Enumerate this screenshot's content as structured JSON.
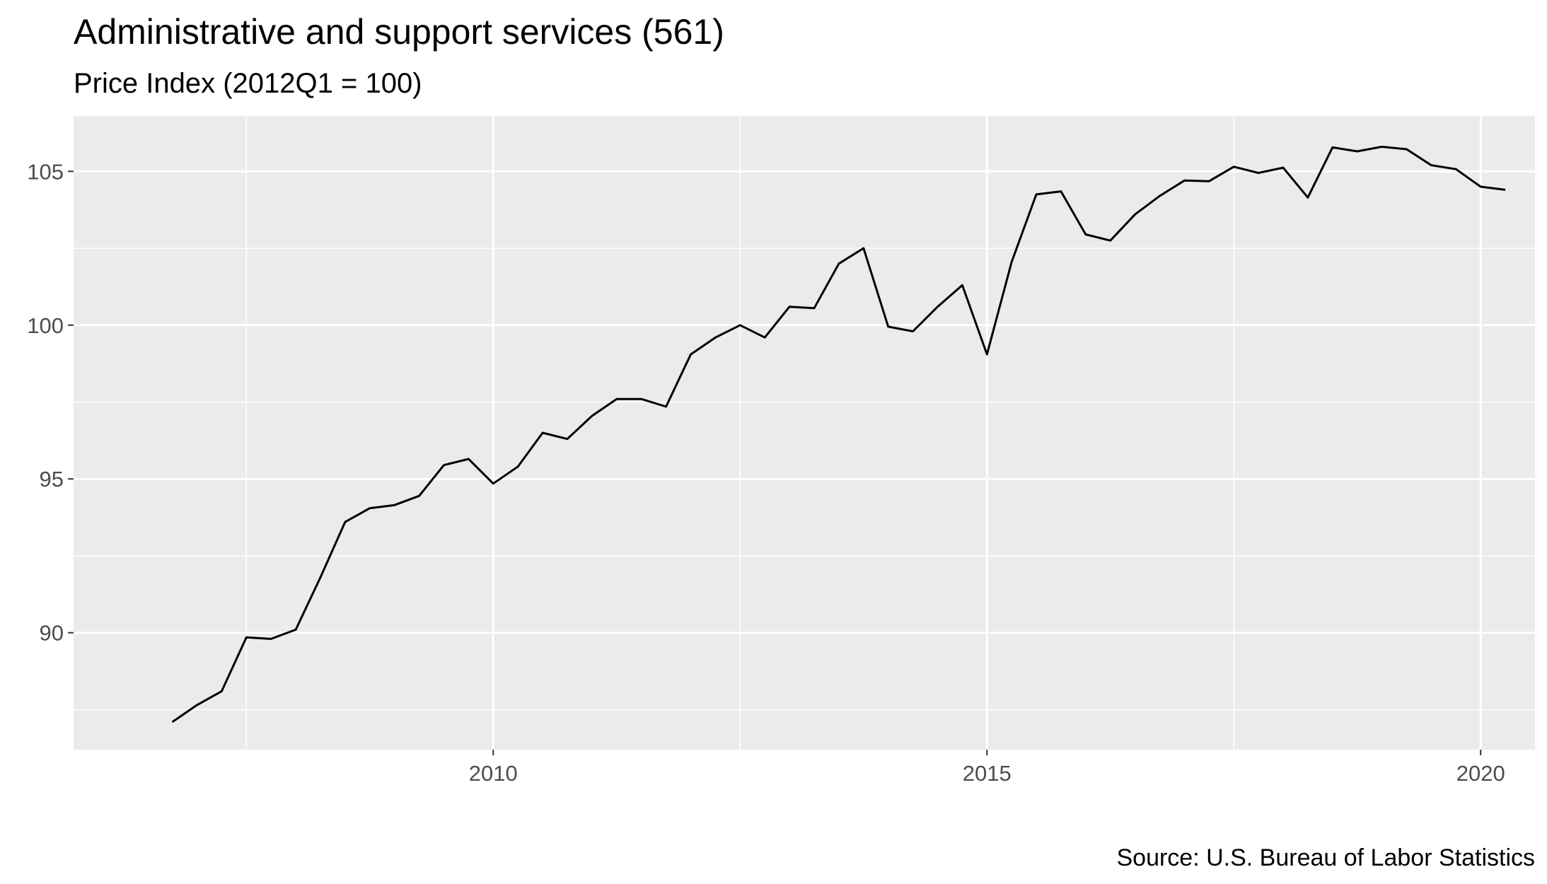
{
  "chart_data": {
    "type": "line",
    "title": "Administrative and support services (561)",
    "subtitle": "Price Index (2012Q1 = 100)",
    "caption": "Source: U.S. Bureau of Labor Statistics",
    "xlabel": "",
    "ylabel": "",
    "xlim": [
      2005.75,
      2020.55
    ],
    "ylim": [
      86.2,
      106.8
    ],
    "x_ticks": [
      2010,
      2015,
      2020
    ],
    "x_tick_labels": [
      "2010",
      "2015",
      "2020"
    ],
    "y_ticks": [
      90,
      95,
      100,
      105
    ],
    "y_tick_labels": [
      "90",
      "95",
      "100",
      "105"
    ],
    "grid": true,
    "legend": "none",
    "series": [
      {
        "x": [
          2006.75,
          2007.0,
          2007.25,
          2007.5,
          2007.75,
          2008.0,
          2008.25,
          2008.5,
          2008.75,
          2009.0,
          2009.25,
          2009.5,
          2009.75,
          2010.0,
          2010.25,
          2010.5,
          2010.75,
          2011.0,
          2011.25,
          2011.5,
          2011.75,
          2012.0,
          2012.25,
          2012.5,
          2012.75,
          2013.0,
          2013.25,
          2013.5,
          2013.75,
          2014.0,
          2014.25,
          2014.5,
          2014.75,
          2015.0,
          2015.25,
          2015.5,
          2015.75,
          2016.0,
          2016.25,
          2016.5,
          2016.75,
          2017.0,
          2017.25,
          2017.5,
          2017.75,
          2018.0,
          2018.25,
          2018.5,
          2018.75,
          2019.0,
          2019.25,
          2019.5,
          2019.75,
          2020.0,
          2020.25
        ],
        "values": [
          87.1,
          87.65,
          88.1,
          89.85,
          89.8,
          90.1,
          91.8,
          93.6,
          94.05,
          94.15,
          94.45,
          95.45,
          95.65,
          94.85,
          95.4,
          96.5,
          96.3,
          97.05,
          97.6,
          97.6,
          97.35,
          99.05,
          99.6,
          100.0,
          99.6,
          100.6,
          100.55,
          102.0,
          102.5,
          99.95,
          99.8,
          100.6,
          101.3,
          99.05,
          102.05,
          104.25,
          104.35,
          102.95,
          102.75,
          103.6,
          104.2,
          104.7,
          104.68,
          105.15,
          104.95,
          105.12,
          104.15,
          105.78,
          105.65,
          105.8,
          105.72,
          105.2,
          105.07,
          104.5,
          104.4
        ]
      }
    ],
    "colors": {
      "panel": "#ebebeb",
      "grid": "#ffffff",
      "line": "#000000",
      "tick_text": "#4d4d4d"
    }
  }
}
